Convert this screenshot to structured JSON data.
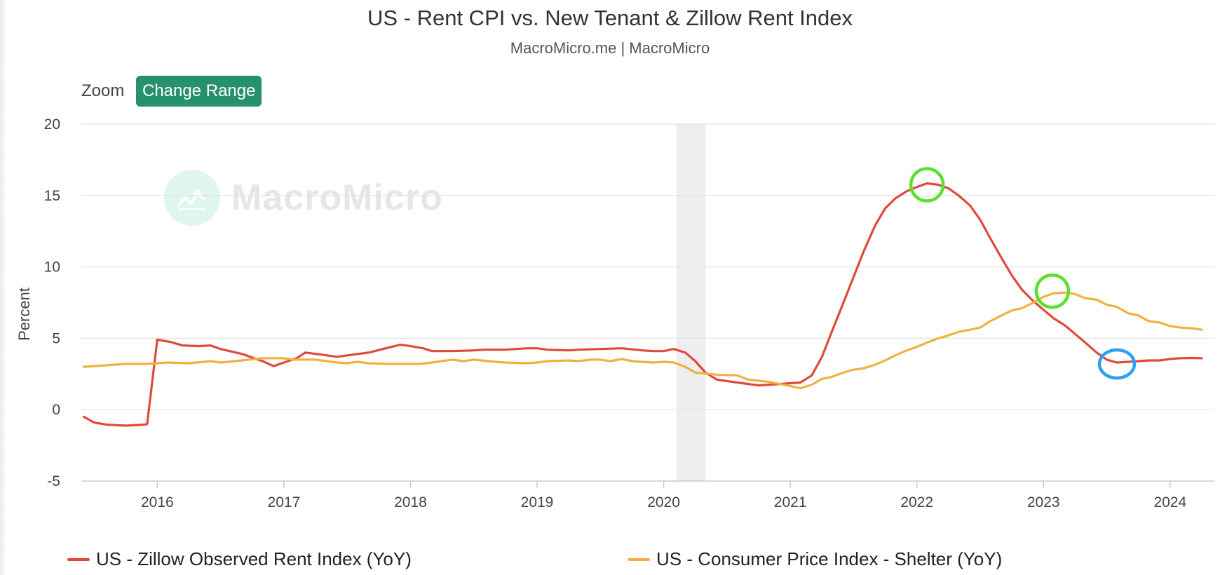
{
  "header": {
    "title": "US - Rent CPI vs. New Tenant & Zillow Rent Index",
    "subtitle": "MacroMicro.me | MacroMicro"
  },
  "toolbar": {
    "zoom_label": "Zoom",
    "change_range_label": "Change Range"
  },
  "watermark": {
    "text": "MacroMicro"
  },
  "colors": {
    "zillow": "#e04a3a",
    "cpi": "#f2b040",
    "button_bg": "#27906f",
    "recession_band": "#eeeeee",
    "peak_marker": "#5ce030",
    "trough_marker": "#2ea0ee"
  },
  "chart_data": {
    "type": "line",
    "title": "US - Rent CPI vs. New Tenant & Zillow Rent Index",
    "subtitle": "MacroMicro.me | MacroMicro",
    "xlabel": "",
    "ylabel": "Percent",
    "xlim": [
      2015.4,
      2024.35
    ],
    "ylim": [
      -5,
      20
    ],
    "x_ticks": [
      "2016",
      "2017",
      "2018",
      "2019",
      "2020",
      "2021",
      "2022",
      "2023",
      "2024"
    ],
    "y_ticks": [
      "20",
      "15",
      "10",
      "5",
      "0",
      "-5"
    ],
    "grid": true,
    "legend_position": "bottom",
    "shaded_regions": [
      {
        "from": 2020.1,
        "to": 2020.33
      }
    ],
    "series": [
      {
        "name": "US - Zillow Observed Rent Index (YoY)",
        "color": "#e04a3a",
        "points": [
          [
            2015.42,
            -0.5
          ],
          [
            2015.5,
            -0.9
          ],
          [
            2015.6,
            -1.05
          ],
          [
            2015.75,
            -1.12
          ],
          [
            2015.9,
            -1.05
          ],
          [
            2015.92,
            -1.0
          ],
          [
            2016.0,
            4.9
          ],
          [
            2016.1,
            4.75
          ],
          [
            2016.2,
            4.5
          ],
          [
            2016.33,
            4.45
          ],
          [
            2016.42,
            4.5
          ],
          [
            2016.5,
            4.25
          ],
          [
            2016.67,
            3.9
          ],
          [
            2016.83,
            3.4
          ],
          [
            2016.92,
            3.05
          ],
          [
            2017.0,
            3.3
          ],
          [
            2017.1,
            3.6
          ],
          [
            2017.17,
            4.0
          ],
          [
            2017.3,
            3.85
          ],
          [
            2017.42,
            3.7
          ],
          [
            2017.5,
            3.8
          ],
          [
            2017.67,
            4.0
          ],
          [
            2017.83,
            4.35
          ],
          [
            2017.92,
            4.55
          ],
          [
            2018.0,
            4.45
          ],
          [
            2018.1,
            4.3
          ],
          [
            2018.17,
            4.1
          ],
          [
            2018.33,
            4.1
          ],
          [
            2018.5,
            4.15
          ],
          [
            2018.58,
            4.2
          ],
          [
            2018.75,
            4.2
          ],
          [
            2018.92,
            4.3
          ],
          [
            2019.0,
            4.3
          ],
          [
            2019.08,
            4.2
          ],
          [
            2019.25,
            4.15
          ],
          [
            2019.33,
            4.2
          ],
          [
            2019.5,
            4.25
          ],
          [
            2019.67,
            4.3
          ],
          [
            2019.83,
            4.15
          ],
          [
            2019.92,
            4.1
          ],
          [
            2020.0,
            4.1
          ],
          [
            2020.08,
            4.25
          ],
          [
            2020.17,
            4.0
          ],
          [
            2020.25,
            3.4
          ],
          [
            2020.33,
            2.6
          ],
          [
            2020.42,
            2.1
          ],
          [
            2020.58,
            1.9
          ],
          [
            2020.75,
            1.7
          ],
          [
            2020.92,
            1.8
          ],
          [
            2021.0,
            1.85
          ],
          [
            2021.08,
            1.9
          ],
          [
            2021.17,
            2.4
          ],
          [
            2021.25,
            3.7
          ],
          [
            2021.33,
            5.5
          ],
          [
            2021.42,
            7.5
          ],
          [
            2021.5,
            9.3
          ],
          [
            2021.58,
            11.1
          ],
          [
            2021.67,
            12.9
          ],
          [
            2021.75,
            14.1
          ],
          [
            2021.83,
            14.8
          ],
          [
            2021.92,
            15.3
          ],
          [
            2022.0,
            15.6
          ],
          [
            2022.08,
            15.85
          ],
          [
            2022.17,
            15.75
          ],
          [
            2022.25,
            15.5
          ],
          [
            2022.33,
            15.0
          ],
          [
            2022.42,
            14.3
          ],
          [
            2022.5,
            13.3
          ],
          [
            2022.58,
            12.0
          ],
          [
            2022.67,
            10.6
          ],
          [
            2022.75,
            9.4
          ],
          [
            2022.83,
            8.4
          ],
          [
            2022.92,
            7.6
          ],
          [
            2023.0,
            7.0
          ],
          [
            2023.08,
            6.4
          ],
          [
            2023.17,
            5.9
          ],
          [
            2023.25,
            5.3
          ],
          [
            2023.33,
            4.7
          ],
          [
            2023.42,
            4.0
          ],
          [
            2023.5,
            3.5
          ],
          [
            2023.58,
            3.3
          ],
          [
            2023.67,
            3.35
          ],
          [
            2023.75,
            3.4
          ],
          [
            2023.83,
            3.45
          ],
          [
            2023.92,
            3.45
          ],
          [
            2024.0,
            3.55
          ],
          [
            2024.08,
            3.6
          ],
          [
            2024.17,
            3.62
          ],
          [
            2024.25,
            3.6
          ]
        ]
      },
      {
        "name": "US - Consumer Price Index - Shelter (YoY)",
        "color": "#f2b040",
        "points": [
          [
            2015.42,
            3.0
          ],
          [
            2015.58,
            3.1
          ],
          [
            2015.75,
            3.2
          ],
          [
            2015.92,
            3.2
          ],
          [
            2016.08,
            3.3
          ],
          [
            2016.25,
            3.25
          ],
          [
            2016.42,
            3.4
          ],
          [
            2016.5,
            3.3
          ],
          [
            2016.67,
            3.45
          ],
          [
            2016.83,
            3.6
          ],
          [
            2017.0,
            3.6
          ],
          [
            2017.08,
            3.5
          ],
          [
            2017.25,
            3.5
          ],
          [
            2017.42,
            3.3
          ],
          [
            2017.5,
            3.25
          ],
          [
            2017.58,
            3.35
          ],
          [
            2017.67,
            3.25
          ],
          [
            2017.83,
            3.2
          ],
          [
            2018.0,
            3.2
          ],
          [
            2018.08,
            3.2
          ],
          [
            2018.17,
            3.3
          ],
          [
            2018.33,
            3.5
          ],
          [
            2018.42,
            3.4
          ],
          [
            2018.5,
            3.5
          ],
          [
            2018.67,
            3.35
          ],
          [
            2018.75,
            3.3
          ],
          [
            2018.92,
            3.25
          ],
          [
            2019.0,
            3.3
          ],
          [
            2019.08,
            3.4
          ],
          [
            2019.25,
            3.45
          ],
          [
            2019.33,
            3.4
          ],
          [
            2019.42,
            3.5
          ],
          [
            2019.5,
            3.5
          ],
          [
            2019.58,
            3.4
          ],
          [
            2019.67,
            3.55
          ],
          [
            2019.75,
            3.4
          ],
          [
            2019.92,
            3.3
          ],
          [
            2020.0,
            3.35
          ],
          [
            2020.08,
            3.3
          ],
          [
            2020.17,
            3.0
          ],
          [
            2020.25,
            2.6
          ],
          [
            2020.42,
            2.45
          ],
          [
            2020.58,
            2.4
          ],
          [
            2020.67,
            2.1
          ],
          [
            2020.83,
            1.95
          ],
          [
            2021.0,
            1.65
          ],
          [
            2021.08,
            1.5
          ],
          [
            2021.17,
            1.75
          ],
          [
            2021.25,
            2.15
          ],
          [
            2021.33,
            2.3
          ],
          [
            2021.42,
            2.6
          ],
          [
            2021.5,
            2.8
          ],
          [
            2021.58,
            2.9
          ],
          [
            2021.67,
            3.15
          ],
          [
            2021.75,
            3.45
          ],
          [
            2021.83,
            3.8
          ],
          [
            2021.92,
            4.15
          ],
          [
            2022.0,
            4.4
          ],
          [
            2022.08,
            4.7
          ],
          [
            2022.17,
            5.0
          ],
          [
            2022.25,
            5.2
          ],
          [
            2022.33,
            5.45
          ],
          [
            2022.42,
            5.6
          ],
          [
            2022.5,
            5.75
          ],
          [
            2022.58,
            6.2
          ],
          [
            2022.67,
            6.6
          ],
          [
            2022.75,
            6.95
          ],
          [
            2022.83,
            7.1
          ],
          [
            2022.92,
            7.5
          ],
          [
            2023.0,
            7.9
          ],
          [
            2023.08,
            8.15
          ],
          [
            2023.17,
            8.2
          ],
          [
            2023.25,
            8.1
          ],
          [
            2023.33,
            7.8
          ],
          [
            2023.42,
            7.7
          ],
          [
            2023.5,
            7.35
          ],
          [
            2023.58,
            7.2
          ],
          [
            2023.67,
            6.75
          ],
          [
            2023.75,
            6.6
          ],
          [
            2023.83,
            6.2
          ],
          [
            2023.92,
            6.1
          ],
          [
            2024.0,
            5.85
          ],
          [
            2024.08,
            5.75
          ],
          [
            2024.17,
            5.7
          ],
          [
            2024.25,
            5.6
          ]
        ]
      }
    ],
    "markers": [
      {
        "series": "US - Zillow Observed Rent Index (YoY)",
        "x": 2022.08,
        "y": 15.75,
        "color": "#5ce030",
        "shape": "circle"
      },
      {
        "series": "US - Consumer Price Index - Shelter (YoY)",
        "x": 2023.07,
        "y": 8.3,
        "color": "#5ce030",
        "shape": "circle"
      },
      {
        "series": "US - Zillow Observed Rent Index (YoY)",
        "x": 2023.58,
        "y": 3.2,
        "color": "#2ea0ee",
        "shape": "ellipse"
      }
    ]
  }
}
